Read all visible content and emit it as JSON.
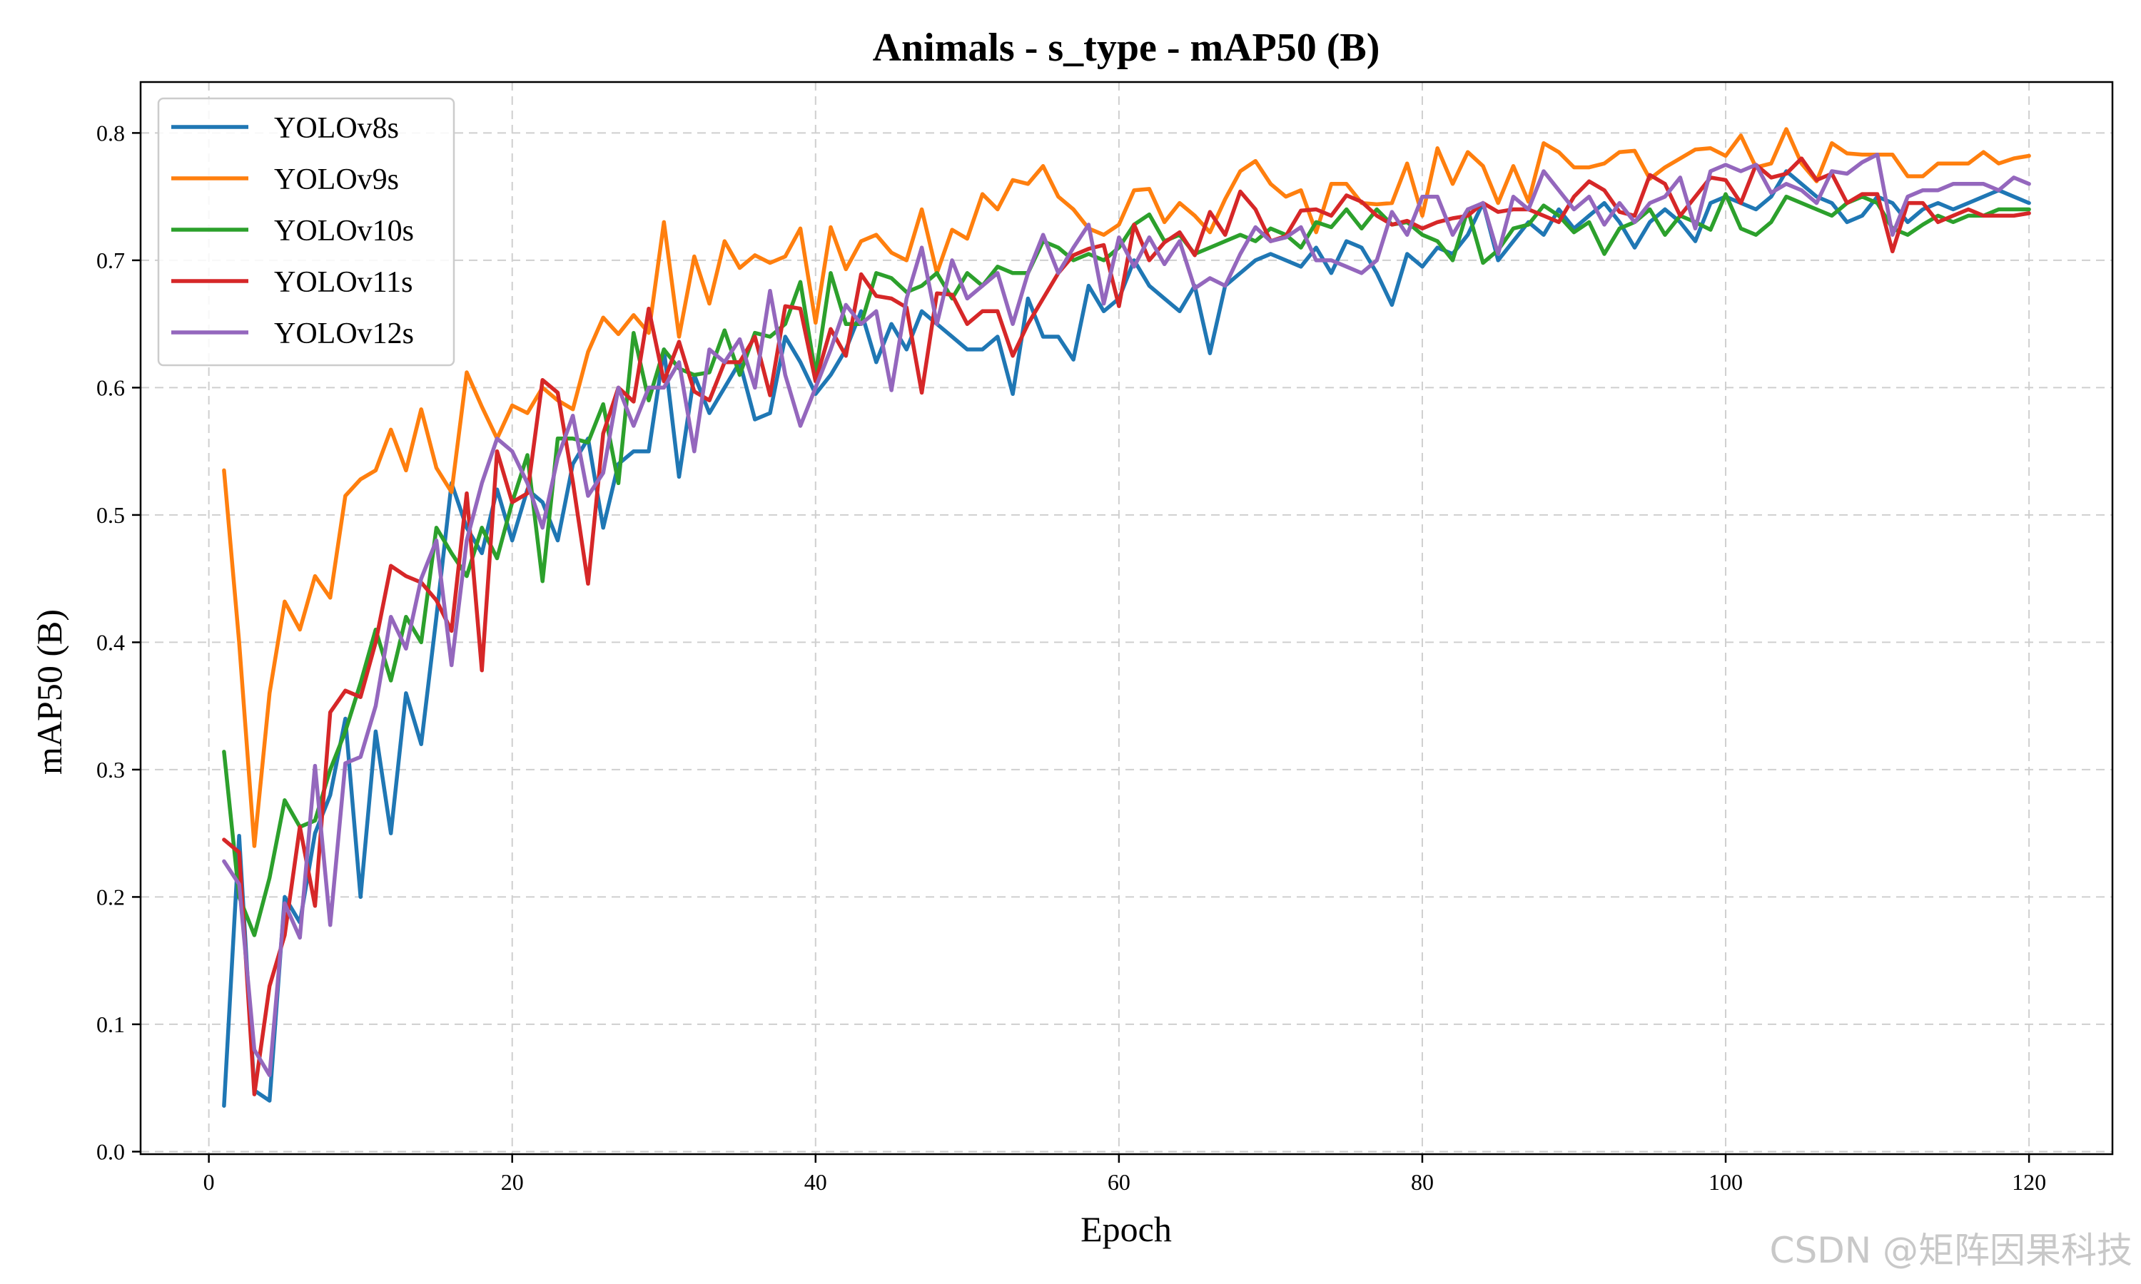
{
  "chart_data": {
    "type": "line",
    "title": "Animals - s_type - mAP50 (B)",
    "xlabel": "Epoch",
    "ylabel": "mAP50 (B)",
    "xlim": [
      -4.5,
      125.5
    ],
    "ylim": [
      -0.002,
      0.84
    ],
    "xticks": [
      0,
      20,
      40,
      60,
      80,
      100,
      120
    ],
    "yticks": [
      0.0,
      0.1,
      0.2,
      0.3,
      0.4,
      0.5,
      0.6,
      0.7,
      0.8
    ],
    "grid": true,
    "legend_position": "top-left",
    "x_start": 1,
    "series": [
      {
        "name": "YOLOv8s",
        "color": "#1f77b4",
        "values": [
          0.036,
          0.248,
          0.048,
          0.04,
          0.2,
          0.18,
          0.25,
          0.28,
          0.34,
          0.2,
          0.33,
          0.25,
          0.36,
          0.32,
          0.42,
          0.525,
          0.49,
          0.47,
          0.52,
          0.48,
          0.52,
          0.51,
          0.48,
          0.54,
          0.56,
          0.49,
          0.54,
          0.55,
          0.55,
          0.63,
          0.53,
          0.61,
          0.58,
          0.6,
          0.62,
          0.575,
          0.58,
          0.64,
          0.62,
          0.595,
          0.61,
          0.63,
          0.66,
          0.62,
          0.65,
          0.63,
          0.66,
          0.65,
          0.64,
          0.63,
          0.63,
          0.64,
          0.595,
          0.67,
          0.64,
          0.64,
          0.622,
          0.68,
          0.66,
          0.67,
          0.7,
          0.68,
          0.67,
          0.66,
          0.68,
          0.627,
          0.68,
          0.69,
          0.7,
          0.705,
          0.7,
          0.695,
          0.71,
          0.69,
          0.715,
          0.71,
          0.69,
          0.665,
          0.705,
          0.695,
          0.71,
          0.705,
          0.72,
          0.745,
          0.7,
          0.715,
          0.73,
          0.72,
          0.74,
          0.725,
          0.735,
          0.745,
          0.73,
          0.71,
          0.73,
          0.74,
          0.73,
          0.715,
          0.745,
          0.75,
          0.745,
          0.74,
          0.75,
          0.77,
          0.76,
          0.75,
          0.745,
          0.73,
          0.735,
          0.75,
          0.745,
          0.73,
          0.74,
          0.745,
          0.74,
          0.745,
          0.75,
          0.755,
          0.75,
          0.745
        ]
      },
      {
        "name": "YOLOv9s",
        "color": "#ff7f0e",
        "values": [
          0.535,
          0.4,
          0.24,
          0.36,
          0.432,
          0.41,
          0.452,
          0.435,
          0.515,
          0.528,
          0.535,
          0.567,
          0.535,
          0.583,
          0.537,
          0.518,
          0.612,
          0.585,
          0.56,
          0.586,
          0.58,
          0.6,
          0.59,
          0.583,
          0.628,
          0.655,
          0.642,
          0.657,
          0.643,
          0.73,
          0.64,
          0.703,
          0.666,
          0.715,
          0.694,
          0.704,
          0.698,
          0.703,
          0.725,
          0.651,
          0.726,
          0.693,
          0.715,
          0.72,
          0.706,
          0.7,
          0.74,
          0.69,
          0.724,
          0.717,
          0.752,
          0.74,
          0.763,
          0.76,
          0.774,
          0.75,
          0.74,
          0.725,
          0.72,
          0.728,
          0.755,
          0.756,
          0.73,
          0.745,
          0.735,
          0.722,
          0.748,
          0.77,
          0.778,
          0.76,
          0.75,
          0.755,
          0.722,
          0.76,
          0.76,
          0.745,
          0.744,
          0.745,
          0.776,
          0.735,
          0.788,
          0.76,
          0.785,
          0.774,
          0.745,
          0.774,
          0.746,
          0.792,
          0.785,
          0.773,
          0.773,
          0.776,
          0.785,
          0.786,
          0.764,
          0.773,
          0.78,
          0.787,
          0.788,
          0.782,
          0.798,
          0.773,
          0.776,
          0.803,
          0.776,
          0.762,
          0.792,
          0.784,
          0.783,
          0.783,
          0.783,
          0.766,
          0.766,
          0.776,
          0.776,
          0.776,
          0.785,
          0.776,
          0.78,
          0.782
        ]
      },
      {
        "name": "YOLOv10s",
        "color": "#2ca02c",
        "values": [
          0.314,
          0.2,
          0.17,
          0.215,
          0.276,
          0.255,
          0.26,
          0.3,
          0.33,
          0.368,
          0.41,
          0.37,
          0.42,
          0.4,
          0.49,
          0.47,
          0.452,
          0.49,
          0.466,
          0.51,
          0.547,
          0.448,
          0.56,
          0.56,
          0.557,
          0.587,
          0.525,
          0.643,
          0.59,
          0.63,
          0.615,
          0.61,
          0.612,
          0.645,
          0.61,
          0.643,
          0.64,
          0.65,
          0.683,
          0.61,
          0.69,
          0.65,
          0.65,
          0.69,
          0.686,
          0.675,
          0.68,
          0.69,
          0.67,
          0.69,
          0.68,
          0.695,
          0.69,
          0.69,
          0.715,
          0.71,
          0.7,
          0.705,
          0.7,
          0.71,
          0.728,
          0.736,
          0.715,
          0.72,
          0.705,
          0.71,
          0.715,
          0.72,
          0.715,
          0.725,
          0.72,
          0.71,
          0.73,
          0.726,
          0.74,
          0.725,
          0.74,
          0.728,
          0.73,
          0.72,
          0.715,
          0.7,
          0.74,
          0.698,
          0.708,
          0.725,
          0.728,
          0.743,
          0.735,
          0.722,
          0.73,
          0.705,
          0.725,
          0.73,
          0.74,
          0.72,
          0.735,
          0.73,
          0.724,
          0.752,
          0.725,
          0.72,
          0.73,
          0.75,
          0.745,
          0.74,
          0.735,
          0.745,
          0.75,
          0.745,
          0.725,
          0.72,
          0.728,
          0.735,
          0.73,
          0.735,
          0.735,
          0.74,
          0.74,
          0.74
        ]
      },
      {
        "name": "YOLOv11s",
        "color": "#d62728",
        "values": [
          0.245,
          0.235,
          0.045,
          0.13,
          0.17,
          0.255,
          0.193,
          0.345,
          0.362,
          0.357,
          0.4,
          0.46,
          0.452,
          0.447,
          0.433,
          0.409,
          0.517,
          0.378,
          0.55,
          0.51,
          0.517,
          0.606,
          0.596,
          0.526,
          0.446,
          0.564,
          0.6,
          0.589,
          0.662,
          0.605,
          0.636,
          0.597,
          0.59,
          0.62,
          0.62,
          0.64,
          0.594,
          0.664,
          0.662,
          0.605,
          0.646,
          0.625,
          0.689,
          0.672,
          0.67,
          0.663,
          0.596,
          0.674,
          0.673,
          0.65,
          0.66,
          0.66,
          0.625,
          0.65,
          0.67,
          0.69,
          0.704,
          0.709,
          0.712,
          0.664,
          0.728,
          0.7,
          0.714,
          0.722,
          0.704,
          0.738,
          0.72,
          0.754,
          0.74,
          0.715,
          0.719,
          0.739,
          0.74,
          0.735,
          0.751,
          0.746,
          0.735,
          0.728,
          0.731,
          0.725,
          0.73,
          0.733,
          0.735,
          0.745,
          0.738,
          0.74,
          0.74,
          0.735,
          0.73,
          0.75,
          0.762,
          0.755,
          0.738,
          0.735,
          0.767,
          0.76,
          0.735,
          0.75,
          0.765,
          0.763,
          0.745,
          0.775,
          0.765,
          0.768,
          0.78,
          0.763,
          0.768,
          0.745,
          0.752,
          0.752,
          0.707,
          0.745,
          0.745,
          0.73,
          0.735,
          0.74,
          0.735,
          0.735,
          0.735,
          0.737
        ]
      },
      {
        "name": "YOLOv12s",
        "color": "#9467bd",
        "values": [
          0.228,
          0.21,
          0.08,
          0.06,
          0.195,
          0.168,
          0.303,
          0.178,
          0.305,
          0.31,
          0.35,
          0.42,
          0.395,
          0.45,
          0.48,
          0.382,
          0.48,
          0.525,
          0.56,
          0.55,
          0.525,
          0.49,
          0.545,
          0.578,
          0.515,
          0.533,
          0.6,
          0.57,
          0.6,
          0.6,
          0.62,
          0.55,
          0.63,
          0.62,
          0.638,
          0.6,
          0.676,
          0.61,
          0.57,
          0.6,
          0.63,
          0.665,
          0.65,
          0.66,
          0.598,
          0.67,
          0.71,
          0.65,
          0.7,
          0.67,
          0.68,
          0.69,
          0.65,
          0.69,
          0.72,
          0.69,
          0.71,
          0.728,
          0.666,
          0.718,
          0.695,
          0.718,
          0.697,
          0.715,
          0.678,
          0.686,
          0.68,
          0.705,
          0.726,
          0.715,
          0.718,
          0.726,
          0.7,
          0.7,
          0.695,
          0.69,
          0.7,
          0.738,
          0.72,
          0.75,
          0.75,
          0.72,
          0.74,
          0.745,
          0.705,
          0.75,
          0.74,
          0.77,
          0.755,
          0.74,
          0.75,
          0.728,
          0.745,
          0.73,
          0.745,
          0.75,
          0.765,
          0.725,
          0.77,
          0.775,
          0.77,
          0.775,
          0.753,
          0.76,
          0.755,
          0.745,
          0.77,
          0.768,
          0.777,
          0.783,
          0.72,
          0.75,
          0.755,
          0.755,
          0.76,
          0.76,
          0.76,
          0.755,
          0.765,
          0.76
        ]
      }
    ]
  },
  "watermark": "CSDN @矩阵因果科技"
}
